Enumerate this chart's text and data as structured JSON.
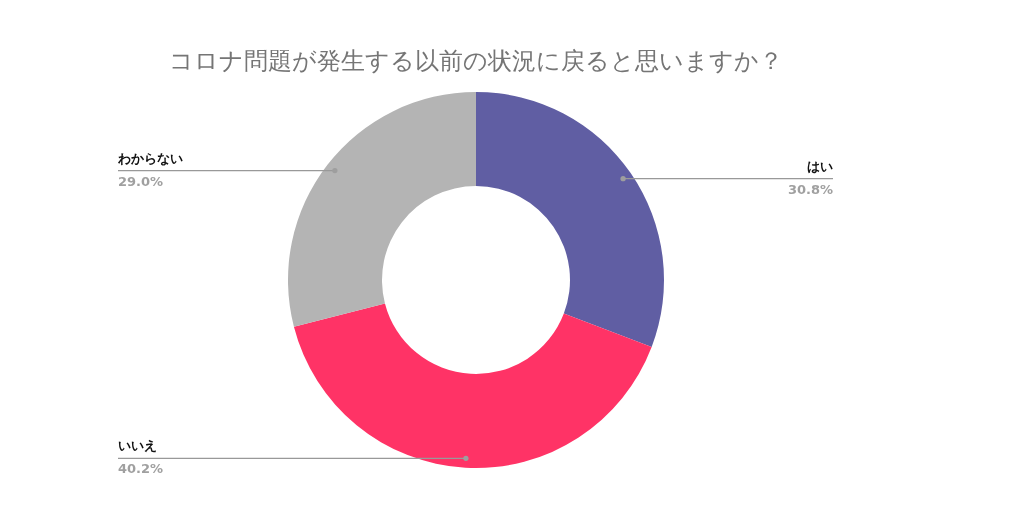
{
  "chart_data": {
    "type": "donut",
    "title": "コロナ問題が発生する以前の状況に戻ると思いますか？",
    "categories": [
      "はい",
      "いいえ",
      "わからない"
    ],
    "values": [
      30.8,
      40.2,
      29.0
    ],
    "colors": [
      "#605ea3",
      "#ff3366",
      "#b4b4b4"
    ],
    "value_labels": [
      "30.8%",
      "40.2%",
      "29.0%"
    ]
  }
}
